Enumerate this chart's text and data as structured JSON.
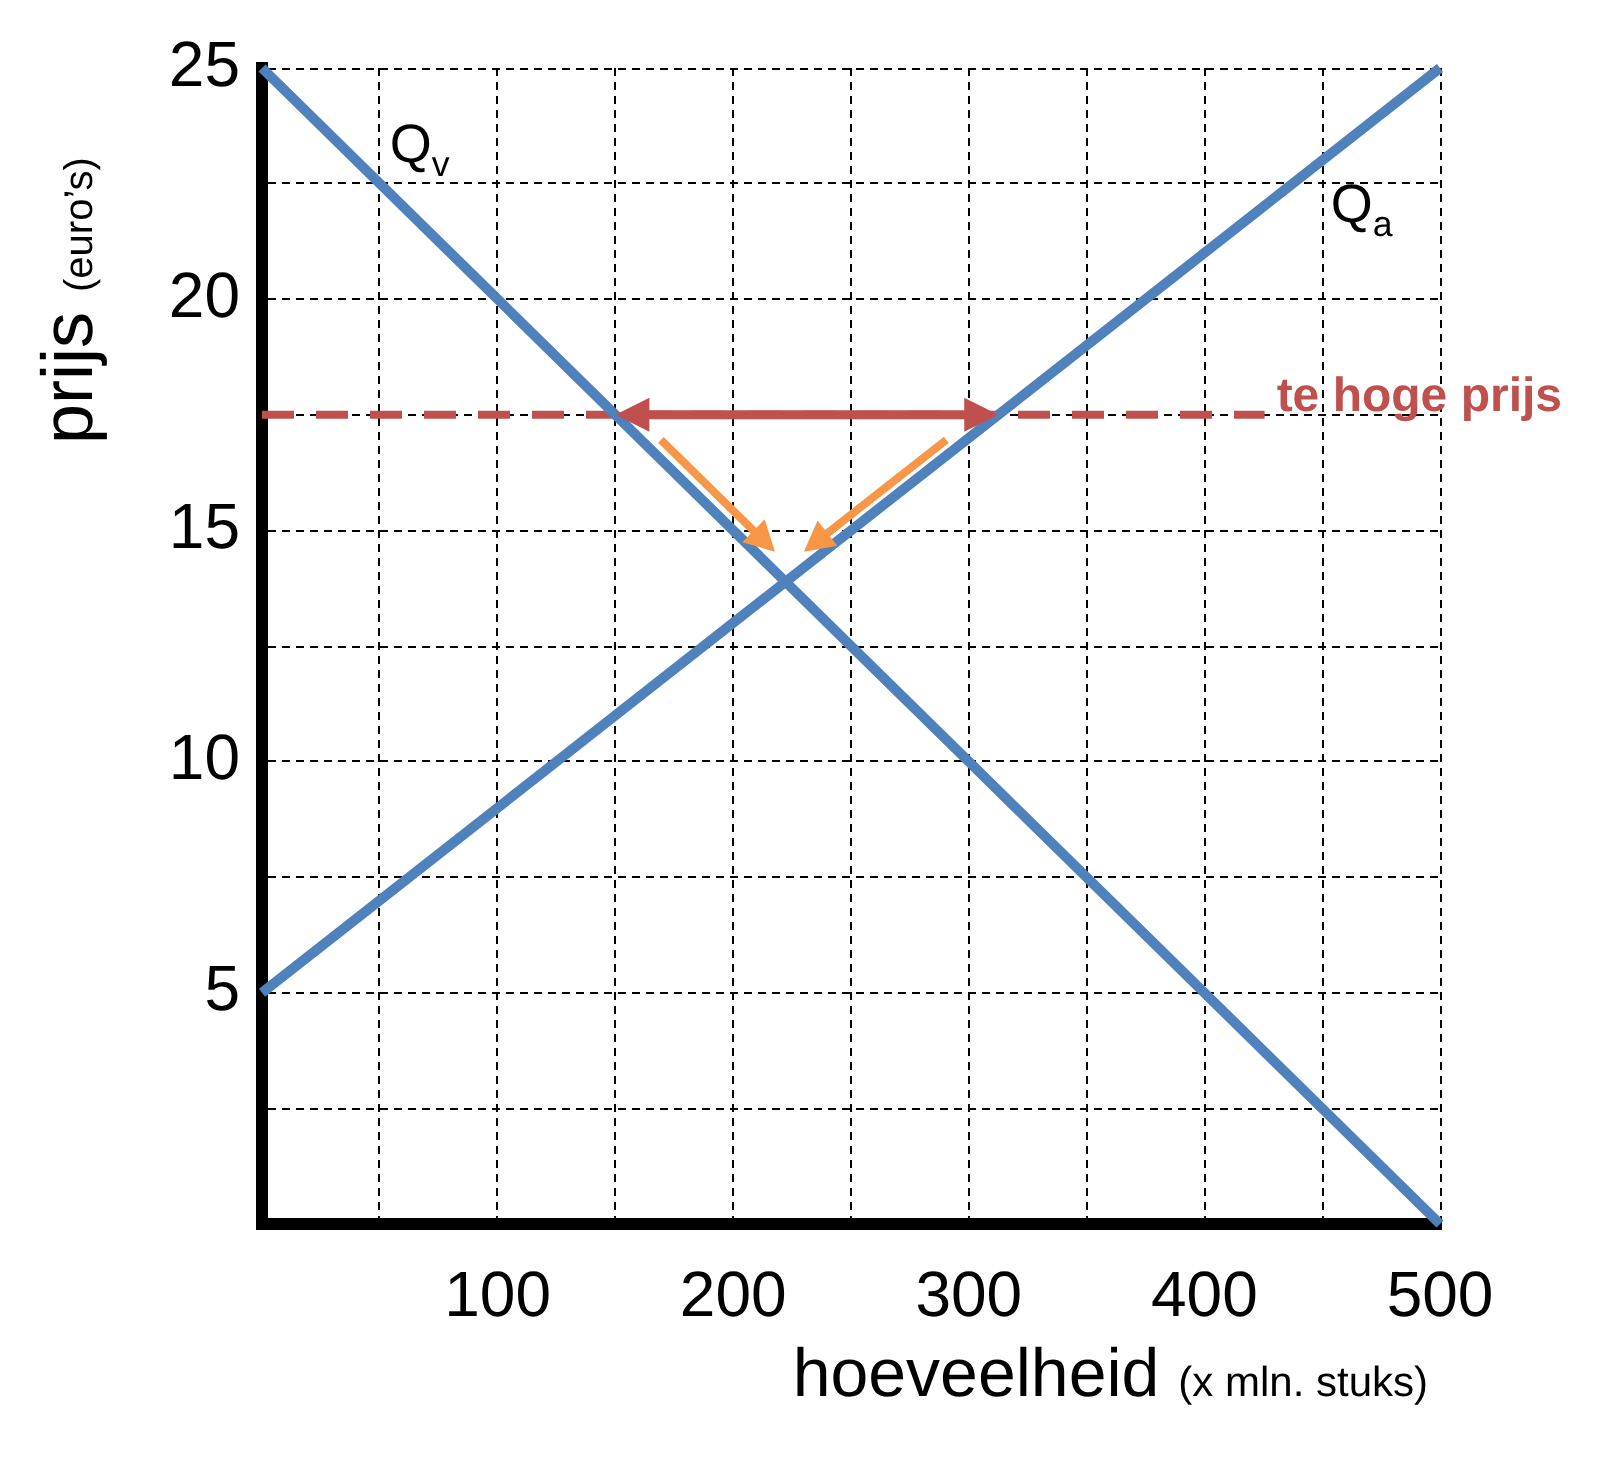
{
  "chart_data": {
    "type": "line",
    "xlabel": "hoeveelheid (x mln. stuks)",
    "ylabel": "prijs (euro’s)",
    "x": [
      0,
      500
    ],
    "series": [
      {
        "name": "Q$_{v}$",
        "color": "#4f81bd",
        "values": [
          25,
          0
        ]
      },
      {
        "name": "Q$_{a}$",
        "color": "#4f81bd",
        "values": [
          5,
          25
        ]
      }
    ],
    "xlim": [
      0,
      500
    ],
    "xticks": [
      {
        "value": 50,
        "label": null
      },
      100,
      {
        "value": 150,
        "label": null
      },
      200,
      {
        "value": 250,
        "label": null
      },
      300,
      {
        "value": 350,
        "label": null
      },
      400,
      {
        "value": 450,
        "label": null
      },
      500
    ],
    "ylim": [
      0,
      25
    ],
    "yticks": [
      {
        "value": 2.5,
        "label": null
      },
      5,
      {
        "value": 7.5,
        "label": null
      },
      10,
      {
        "value": 12.5,
        "label": null
      },
      15,
      {
        "value": 17.5,
        "label": null
      },
      20,
      {
        "value": 22.5,
        "label": null
      },
      25
    ],
    "ref_lines": [
      {
        "axis": "y",
        "value": 17.5,
        "label": "te hoge prijs",
        "color": "#c0504d",
        "line_style": "dashed"
      }
    ],
    "grid": true,
    "marker": "none"
  }
}
